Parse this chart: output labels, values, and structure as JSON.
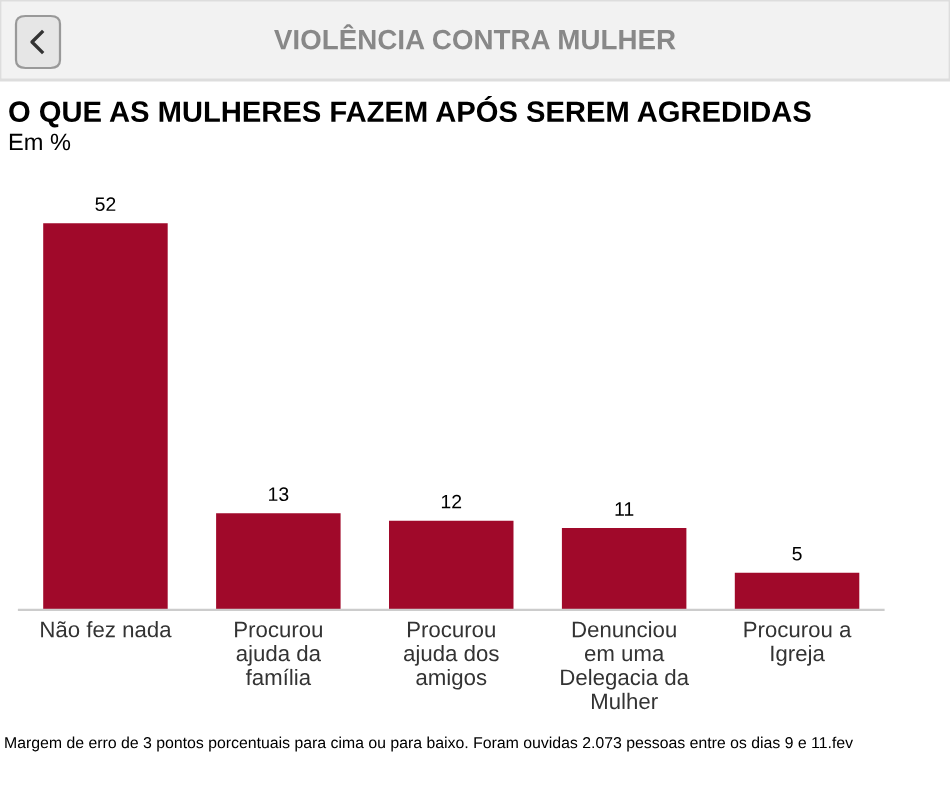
{
  "chart_data": {
    "type": "bar",
    "title": "O QUE AS MULHERES FAZEM APÓS SEREM AGREDIDAS",
    "subtitle": "Em %",
    "categories": [
      "Não fez nada",
      "Procurou\najuda da\nfamília",
      "Procurou\najuda dos\namigos",
      "Denunciou\nem uma\nDelegacia da\nMulher",
      "Procurou a\nIgreja"
    ],
    "values": [
      52,
      13,
      12,
      11,
      5
    ],
    "color": "#a0092a",
    "data_labels": true,
    "grid": false,
    "legend": false,
    "annotations": [
      "VIOLÊNCIA CONTRA MULHER",
      "Margem de erro de 3 pontos porcentuais para cima ou para baixo. Foram ouvidas 2.073 pessoas entre os dias 9 e 11.fev"
    ]
  }
}
